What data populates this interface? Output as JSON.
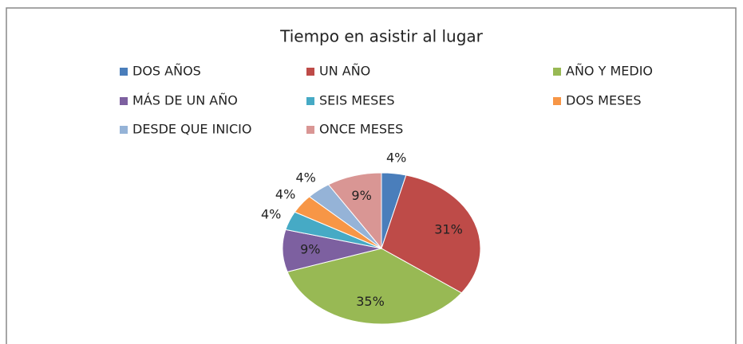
{
  "chart_data": {
    "type": "pie",
    "title": "Tiempo  en asistir al lugar",
    "categories": [
      "DOS AÑOS",
      "UN AÑO",
      "AÑO Y MEDIO",
      "MÁS DE UN AÑO",
      "SEIS MESES",
      "DOS MESES",
      "DESDE QUE INICIO",
      "ONCE MESES"
    ],
    "values": [
      4,
      31,
      35,
      9,
      4,
      4,
      4,
      9
    ],
    "value_labels": [
      "4%",
      "31%",
      "35%",
      "9%",
      "4%",
      "4%",
      "4%",
      "9%"
    ],
    "colors": [
      "#4a7ebb",
      "#be4b48",
      "#98b954",
      "#7d60a0",
      "#46aac5",
      "#f79646",
      "#95b3d7",
      "#d99694"
    ],
    "legend": "top"
  }
}
